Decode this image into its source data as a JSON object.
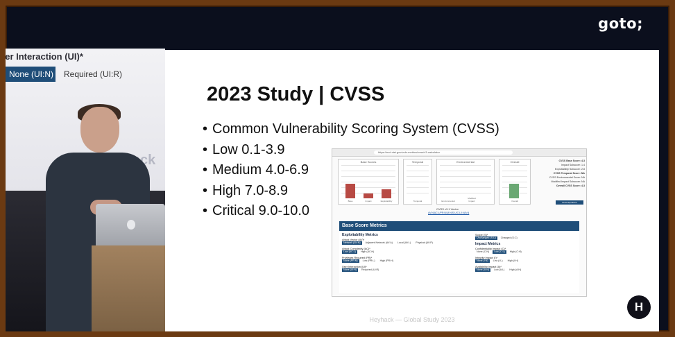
{
  "brand": {
    "goto_logo": "goto;"
  },
  "camera": {
    "ui_label": "ser Interaction (UI)*",
    "options": [
      "None (UI:N)",
      "Required (UI:R)"
    ],
    "background_text": "Heyhack"
  },
  "slide": {
    "title": "2023 Study | CVSS",
    "bullets": [
      "Common Vulnerability Scoring System (CVSS)",
      "Low 0.1-3.9",
      "Medium 4.0-6.9",
      "High 7.0-8.9",
      "Critical 9.0-10.0"
    ],
    "footer": "Heyhack — Global Study 2023",
    "logo_letter": "H"
  },
  "calculator": {
    "url": "https://nvd.nist.gov/vuln-metrics/cvss/v3-calculator",
    "panels": {
      "base": "Base Scores",
      "temporal": "Temporal",
      "environmental": "Environmental",
      "overall": "Overall"
    },
    "base_bar_labels": [
      "Base",
      "Impact",
      "Exploitability"
    ],
    "temporal_label": "Temporal",
    "environmental_labels": [
      "Environmental",
      "Modified Impact"
    ],
    "overall_label": "Overall",
    "scores": [
      "CVSS Base Score: 4.3",
      "Impact Subscore: 1.4",
      "Exploitability Subscore: 2.8",
      "CVSS Temporal Score: NA",
      "CVSS Environmental Score: NA",
      "Modified Impact Subscore: NA",
      "Overall CVSS Score: 4.3"
    ],
    "reset_button": "Show Equations",
    "vector_title": "CVSS v3.1 Vector",
    "vector": "AV:N/AC:L/PR:N/UI:N/S:U/C:L/I:N/A:N",
    "section_header": "Base Score Metrics",
    "exploitability": {
      "title": "Exploitability Metrics",
      "attack_vector": {
        "label": "Attack Vector (AV)*",
        "options": [
          "Network (AV:N)",
          "Adjacent Network (AV:A)",
          "Local (AV:L)",
          "Physical (AV:P)"
        ]
      },
      "attack_complexity": {
        "label": "Attack Complexity (AC)*",
        "options": [
          "Low (AC:L)",
          "High (AC:H)"
        ]
      },
      "privileges": {
        "label": "Privileges Required (PR)*",
        "options": [
          "None (PR:N)",
          "Low (PR:L)",
          "High (PR:H)"
        ]
      },
      "user_interaction": {
        "label": "User Interaction (UI)*",
        "options": [
          "None (UI:N)",
          "Required (UI:R)"
        ]
      }
    },
    "scope": {
      "label": "Scope (S)*",
      "options": [
        "Unchanged (S:U)",
        "Changed (S:C)"
      ]
    },
    "impact": {
      "title": "Impact Metrics",
      "confidentiality": {
        "label": "Confidentiality Impact (C)*",
        "options": [
          "None (C:N)",
          "Low (C:L)",
          "High (C:H)"
        ]
      },
      "integrity": {
        "label": "Integrity Impact (I)*",
        "options": [
          "None (I:N)",
          "Low (I:L)",
          "High (I:H)"
        ]
      },
      "availability": {
        "label": "Availability Impact (A)*",
        "options": [
          "None (A:N)",
          "Low (A:L)",
          "High (A:H)"
        ]
      }
    },
    "colors": {
      "bar": "#b84a44",
      "overall_bar": "#6aa873",
      "header": "#1f4e79"
    }
  }
}
